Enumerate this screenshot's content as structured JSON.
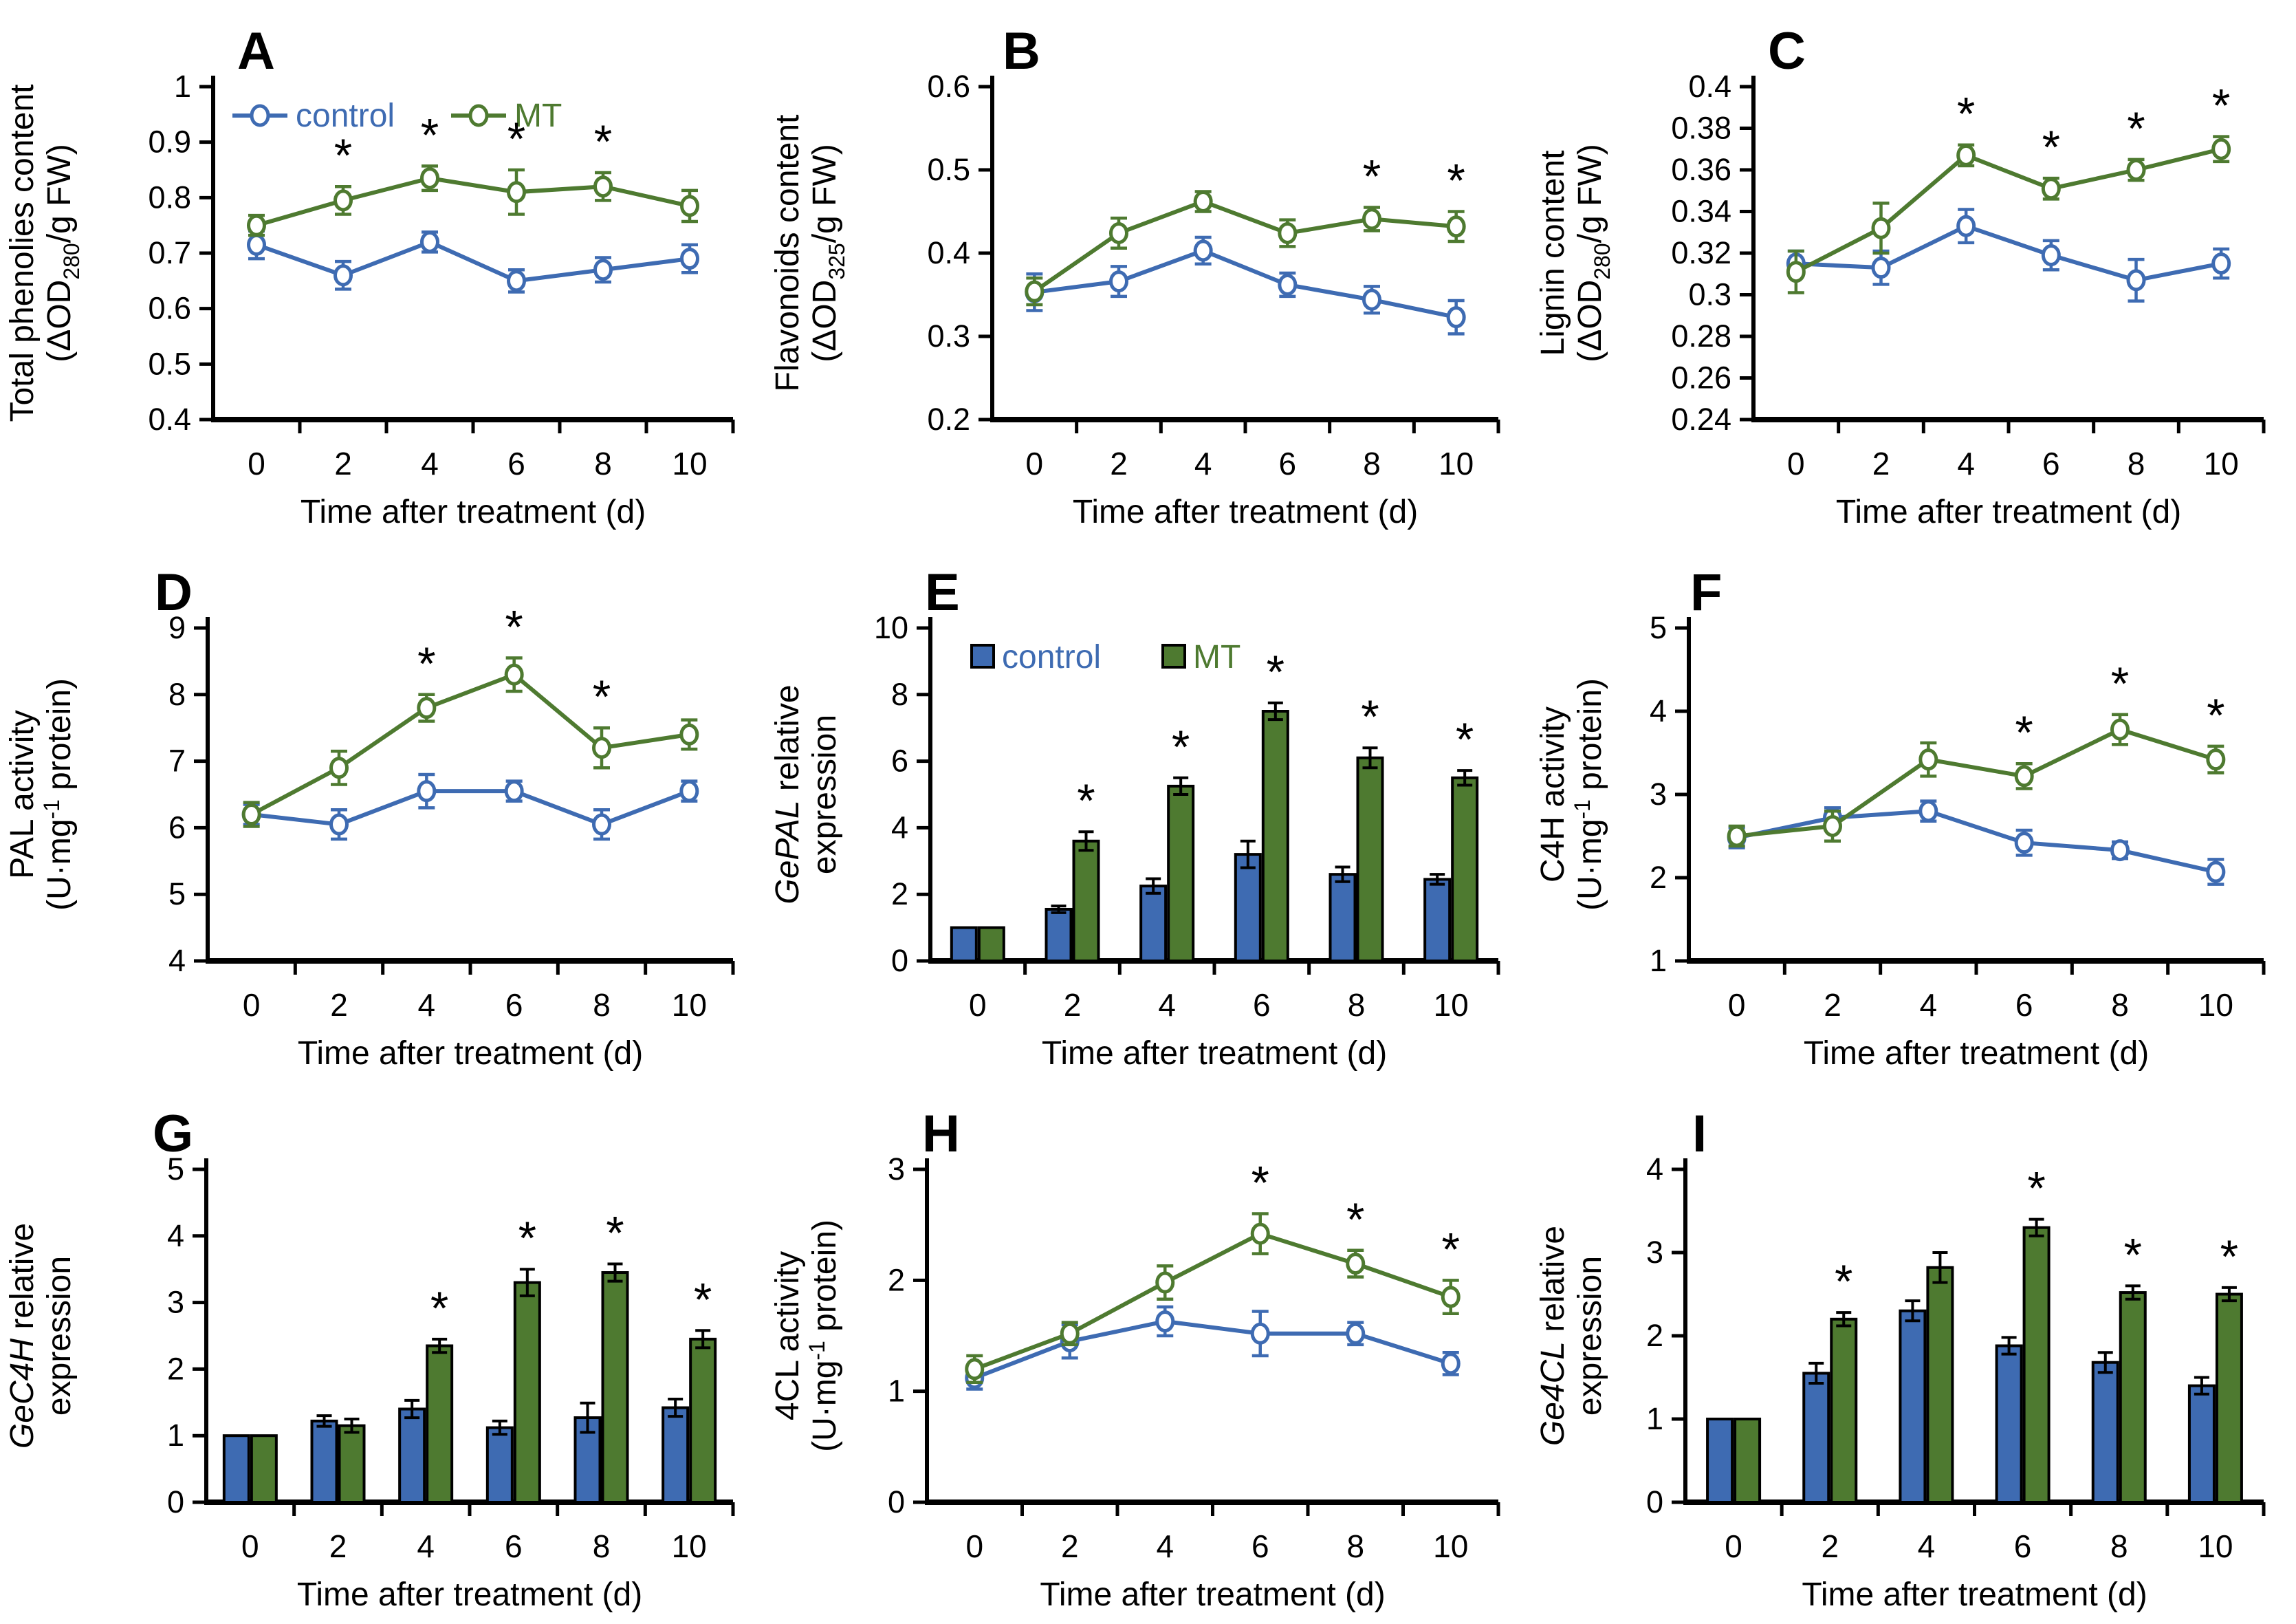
{
  "figure": {
    "asterisk": "*",
    "background": "#ffffff"
  },
  "colors": {
    "control": "#3E6BB2",
    "mt": "#4E7A30",
    "axis": "#000000",
    "text": "#000000",
    "marker_fill": "#FFFFFF"
  },
  "legend_labels": {
    "control": "control",
    "mt": "MT"
  },
  "chart_data": [
    {
      "panel": "A",
      "type": "line",
      "legend": "line",
      "xlabel": "Time after treatment (d)",
      "categories": [
        "0",
        "2",
        "4",
        "6",
        "8",
        "10"
      ],
      "ylabel_line1": [
        {
          "text": "Total phenolies content"
        }
      ],
      "ylabel_line2": [
        {
          "text": "(ΔOD"
        },
        {
          "text": "280",
          "sub": true
        },
        {
          "text": "/g FW)"
        }
      ],
      "ylim": [
        0.4,
        1
      ],
      "yticks": [
        0.4,
        0.5,
        0.6,
        0.7,
        0.8,
        0.9,
        1
      ],
      "ytick_labels": [
        "0.4",
        "0.5",
        "0.6",
        "0.7",
        "0.8",
        "0.9",
        "1"
      ],
      "series": [
        {
          "name": "control",
          "color": "control",
          "values": [
            0.715,
            0.66,
            0.72,
            0.65,
            0.67,
            0.69
          ],
          "errors": [
            0.025,
            0.025,
            0.018,
            0.02,
            0.022,
            0.025
          ]
        },
        {
          "name": "MT",
          "color": "mt",
          "values": [
            0.75,
            0.795,
            0.835,
            0.81,
            0.82,
            0.785
          ],
          "errors": [
            0.018,
            0.025,
            0.022,
            0.04,
            0.025,
            0.028
          ]
        }
      ],
      "asterisk_idx": [
        1,
        2,
        3,
        4
      ]
    },
    {
      "panel": "B",
      "type": "line",
      "legend": "none",
      "xlabel": "Time after treatment (d)",
      "categories": [
        "0",
        "2",
        "4",
        "6",
        "8",
        "10"
      ],
      "ylabel_line1": [
        {
          "text": "Flavonoids content"
        }
      ],
      "ylabel_line2": [
        {
          "text": "(ΔOD"
        },
        {
          "text": "325",
          "sub": true
        },
        {
          "text": "/g FW)"
        }
      ],
      "ylim": [
        0.2,
        0.6
      ],
      "yticks": [
        0.2,
        0.3,
        0.4,
        0.5,
        0.6
      ],
      "ytick_labels": [
        "0.2",
        "0.3",
        "0.4",
        "0.5",
        "0.6"
      ],
      "series": [
        {
          "name": "control",
          "color": "control",
          "values": [
            0.353,
            0.366,
            0.403,
            0.362,
            0.344,
            0.323
          ],
          "errors": [
            0.022,
            0.018,
            0.016,
            0.014,
            0.016,
            0.02
          ]
        },
        {
          "name": "MT",
          "color": "mt",
          "values": [
            0.354,
            0.424,
            0.462,
            0.424,
            0.441,
            0.432
          ],
          "errors": [
            0.016,
            0.018,
            0.012,
            0.016,
            0.014,
            0.018
          ]
        }
      ],
      "asterisk_idx": [
        4,
        5
      ]
    },
    {
      "panel": "C",
      "type": "line",
      "legend": "none",
      "xlabel": "Time after treatment (d)",
      "categories": [
        "0",
        "2",
        "4",
        "6",
        "8",
        "10"
      ],
      "ylabel_line1": [
        {
          "text": "Lignin content"
        }
      ],
      "ylabel_line2": [
        {
          "text": "(ΔOD"
        },
        {
          "text": "280",
          "sub": true
        },
        {
          "text": "/g FW)"
        }
      ],
      "ylim": [
        0.24,
        0.4
      ],
      "yticks": [
        0.24,
        0.26,
        0.28,
        0.3,
        0.32,
        0.34,
        0.36,
        0.38,
        0.4
      ],
      "ytick_labels": [
        "0.24",
        "0.26",
        "0.28",
        "0.3",
        "0.32",
        "0.34",
        "0.36",
        "0.38",
        "0.4"
      ],
      "series": [
        {
          "name": "control",
          "color": "control",
          "values": [
            0.315,
            0.313,
            0.333,
            0.319,
            0.307,
            0.315
          ],
          "errors": [
            0.006,
            0.008,
            0.008,
            0.007,
            0.01,
            0.007
          ]
        },
        {
          "name": "MT",
          "color": "mt",
          "values": [
            0.311,
            0.332,
            0.367,
            0.351,
            0.36,
            0.37
          ],
          "errors": [
            0.01,
            0.012,
            0.005,
            0.005,
            0.005,
            0.006
          ]
        }
      ],
      "asterisk_idx": [
        2,
        3,
        4,
        5
      ]
    },
    {
      "panel": "D",
      "type": "line",
      "legend": "none",
      "xlabel": "Time after treatment (d)",
      "categories": [
        "0",
        "2",
        "4",
        "6",
        "8",
        "10"
      ],
      "ylabel_line1": [
        {
          "text": "PAL activity"
        }
      ],
      "ylabel_line2": [
        {
          "text": "(U·mg"
        },
        {
          "text": "-1",
          "sup": true
        },
        {
          "text": " protein)"
        }
      ],
      "ylim": [
        4,
        9
      ],
      "yticks": [
        4,
        5,
        6,
        7,
        8,
        9
      ],
      "ytick_labels": [
        "4",
        "5",
        "6",
        "7",
        "8",
        "9"
      ],
      "series": [
        {
          "name": "control",
          "color": "control",
          "values": [
            6.2,
            6.05,
            6.55,
            6.55,
            6.05,
            6.55
          ],
          "errors": [
            0.15,
            0.22,
            0.25,
            0.15,
            0.22,
            0.15
          ]
        },
        {
          "name": "MT",
          "color": "mt",
          "values": [
            6.2,
            6.9,
            7.8,
            8.3,
            7.2,
            7.4
          ],
          "errors": [
            0.18,
            0.25,
            0.2,
            0.25,
            0.3,
            0.22
          ]
        }
      ],
      "asterisk_idx": [
        2,
        3,
        4
      ]
    },
    {
      "panel": "E",
      "type": "bar",
      "legend": "square",
      "xlabel": "Time after treatment (d)",
      "categories": [
        "0",
        "2",
        "4",
        "6",
        "8",
        "10"
      ],
      "ylabel_line1": [
        {
          "text": "GePAL",
          "italic": true
        },
        {
          "text": " relative"
        }
      ],
      "ylabel_line2": [
        {
          "text": "expression"
        }
      ],
      "ylim": [
        0,
        10
      ],
      "yticks": [
        0,
        2,
        4,
        6,
        8,
        10
      ],
      "ytick_labels": [
        "0",
        "2",
        "4",
        "6",
        "8",
        "10"
      ],
      "series": [
        {
          "name": "control",
          "color": "control",
          "values": [
            1,
            1.55,
            2.25,
            3.2,
            2.6,
            2.45
          ],
          "errors": [
            0.03,
            0.1,
            0.22,
            0.4,
            0.22,
            0.15
          ]
        },
        {
          "name": "MT",
          "color": "mt",
          "values": [
            1,
            3.6,
            5.25,
            7.5,
            6.1,
            5.5
          ],
          "errors": [
            0.03,
            0.28,
            0.25,
            0.25,
            0.3,
            0.22
          ]
        }
      ],
      "asterisk_idx": [
        1,
        2,
        3,
        4,
        5
      ]
    },
    {
      "panel": "F",
      "type": "line",
      "legend": "none",
      "xlabel": "Time after treatment (d)",
      "categories": [
        "0",
        "2",
        "4",
        "6",
        "8",
        "10"
      ],
      "ylabel_line1": [
        {
          "text": "C4H activity"
        }
      ],
      "ylabel_line2": [
        {
          "text": "(U·mg"
        },
        {
          "text": "-1",
          "sup": true
        },
        {
          "text": " protein)"
        }
      ],
      "ylim": [
        1,
        5
      ],
      "yticks": [
        1,
        2,
        3,
        4,
        5
      ],
      "ytick_labels": [
        "1",
        "2",
        "3",
        "4",
        "5"
      ],
      "series": [
        {
          "name": "control",
          "color": "control",
          "values": [
            2.48,
            2.72,
            2.8,
            2.42,
            2.33,
            2.07
          ],
          "errors": [
            0.12,
            0.12,
            0.12,
            0.15,
            0.1,
            0.15
          ]
        },
        {
          "name": "MT",
          "color": "mt",
          "values": [
            2.5,
            2.62,
            3.42,
            3.22,
            3.78,
            3.42
          ],
          "errors": [
            0.12,
            0.18,
            0.2,
            0.15,
            0.18,
            0.16
          ]
        }
      ],
      "asterisk_idx": [
        3,
        4,
        5
      ]
    },
    {
      "panel": "G",
      "type": "bar",
      "legend": "none",
      "xlabel": "Time after treatment (d)",
      "categories": [
        "0",
        "2",
        "4",
        "6",
        "8",
        "10"
      ],
      "ylabel_line1": [
        {
          "text": "GeC4H",
          "italic": true
        },
        {
          "text": " relative"
        }
      ],
      "ylabel_line2": [
        {
          "text": "expression"
        }
      ],
      "ylim": [
        0,
        5
      ],
      "yticks": [
        0,
        1,
        2,
        3,
        4,
        5
      ],
      "ytick_labels": [
        "0",
        "1",
        "2",
        "3",
        "4",
        "5"
      ],
      "series": [
        {
          "name": "control",
          "color": "control",
          "values": [
            1,
            1.22,
            1.4,
            1.12,
            1.27,
            1.42
          ],
          "errors": [
            0.02,
            0.08,
            0.13,
            0.1,
            0.22,
            0.13
          ]
        },
        {
          "name": "MT",
          "color": "mt",
          "values": [
            1,
            1.15,
            2.35,
            3.3,
            3.45,
            2.45
          ],
          "errors": [
            0.02,
            0.1,
            0.1,
            0.2,
            0.13,
            0.13
          ]
        }
      ],
      "asterisk_idx": [
        2,
        3,
        4,
        5
      ]
    },
    {
      "panel": "H",
      "type": "line",
      "legend": "none",
      "xlabel": "Time after treatment (d)",
      "categories": [
        "0",
        "2",
        "4",
        "6",
        "8",
        "10"
      ],
      "ylabel_line1": [
        {
          "text": "4CL activity"
        }
      ],
      "ylabel_line2": [
        {
          "text": "(U·mg"
        },
        {
          "text": "-1",
          "sup": true
        },
        {
          "text": " protein)"
        }
      ],
      "ylim": [
        0,
        3
      ],
      "yticks": [
        0,
        1,
        2,
        3
      ],
      "ytick_labels": [
        "0",
        "1",
        "2",
        "3"
      ],
      "series": [
        {
          "name": "control",
          "color": "control",
          "values": [
            1.12,
            1.45,
            1.63,
            1.52,
            1.52,
            1.25
          ],
          "errors": [
            0.1,
            0.15,
            0.13,
            0.2,
            0.1,
            0.1
          ]
        },
        {
          "name": "MT",
          "color": "mt",
          "values": [
            1.2,
            1.52,
            1.98,
            2.42,
            2.15,
            1.85
          ],
          "errors": [
            0.12,
            0.1,
            0.15,
            0.18,
            0.12,
            0.15
          ]
        }
      ],
      "asterisk_idx": [
        3,
        4,
        5
      ]
    },
    {
      "panel": "I",
      "type": "bar",
      "legend": "none",
      "xlabel": "Time after treatment (d)",
      "categories": [
        "0",
        "2",
        "4",
        "6",
        "8",
        "10"
      ],
      "ylabel_line1": [
        {
          "text": "Ge4CL",
          "italic": true
        },
        {
          "text": " relative"
        }
      ],
      "ylabel_line2": [
        {
          "text": "expression"
        }
      ],
      "ylim": [
        0,
        4
      ],
      "yticks": [
        0,
        1,
        2,
        3,
        4
      ],
      "ytick_labels": [
        "0",
        "1",
        "2",
        "3",
        "4"
      ],
      "series": [
        {
          "name": "control",
          "color": "control",
          "values": [
            1,
            1.55,
            2.3,
            1.88,
            1.68,
            1.4
          ],
          "errors": [
            0.02,
            0.12,
            0.12,
            0.1,
            0.12,
            0.1
          ]
        },
        {
          "name": "MT",
          "color": "mt",
          "values": [
            1,
            2.2,
            2.82,
            3.3,
            2.52,
            2.5
          ],
          "errors": [
            0.02,
            0.08,
            0.18,
            0.1,
            0.08,
            0.08
          ]
        }
      ],
      "asterisk_idx": [
        1,
        3,
        4,
        5
      ]
    }
  ]
}
